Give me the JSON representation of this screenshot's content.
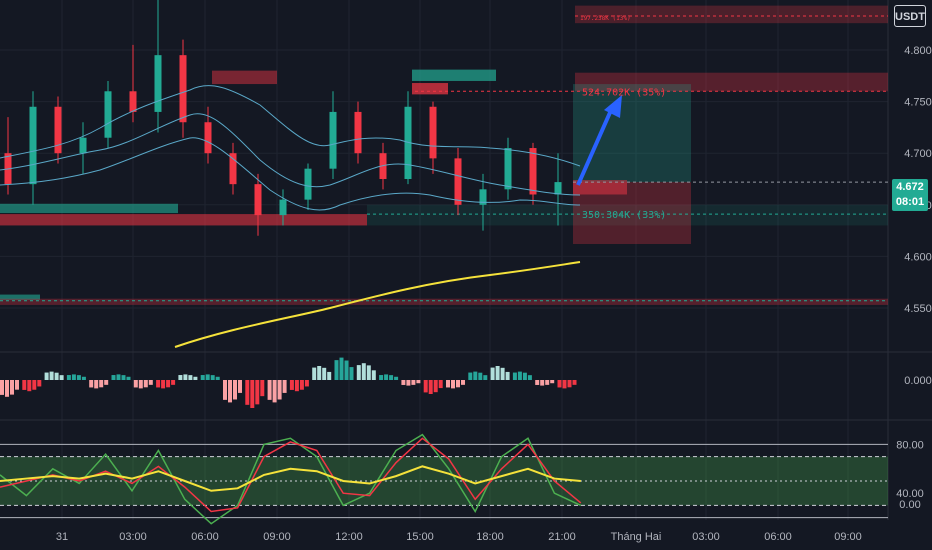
{
  "currency_button": "USDT",
  "last_price": "4.672",
  "countdown": "08:01",
  "colors": {
    "background": "#141823",
    "grid": "#1f2430",
    "up": "#22ab94",
    "down": "#f23645",
    "ema": "#f5e23b",
    "bands": "#5aa8c8",
    "arrow": "#2962ff"
  },
  "chart_data": [
    {
      "type": "candlestick",
      "panel": "price",
      "ylim": [
        4.53,
        4.84
      ],
      "y_ticks": [
        "4.800",
        "4.750",
        "4.700",
        "4.650",
        "4.600",
        "4.550"
      ],
      "x_ticks": [
        "31",
        "03:00",
        "06:00",
        "09:00",
        "12:00",
        "15:00",
        "18:00",
        "21:00",
        "Tháng Hai",
        "03:00",
        "06:00",
        "09:00"
      ],
      "candles_approx": [
        {
          "t": "00:00",
          "o": 4.7,
          "h": 4.735,
          "l": 4.66,
          "c": 4.67
        },
        {
          "t": "01:00",
          "o": 4.67,
          "h": 4.76,
          "l": 4.65,
          "c": 4.745
        },
        {
          "t": "02:00",
          "o": 4.745,
          "h": 4.755,
          "l": 4.69,
          "c": 4.7
        },
        {
          "t": "03:00",
          "o": 4.7,
          "h": 4.73,
          "l": 4.68,
          "c": 4.715
        },
        {
          "t": "04:00",
          "o": 4.715,
          "h": 4.77,
          "l": 4.705,
          "c": 4.76
        },
        {
          "t": "05:00",
          "o": 4.76,
          "h": 4.805,
          "l": 4.73,
          "c": 4.74
        },
        {
          "t": "06:00",
          "o": 4.74,
          "h": 4.85,
          "l": 4.72,
          "c": 4.795
        },
        {
          "t": "06:30",
          "o": 4.795,
          "h": 4.81,
          "l": 4.715,
          "c": 4.73
        },
        {
          "t": "07:00",
          "o": 4.73,
          "h": 4.745,
          "l": 4.69,
          "c": 4.7
        },
        {
          "t": "08:00",
          "o": 4.7,
          "h": 4.71,
          "l": 4.66,
          "c": 4.67
        },
        {
          "t": "09:00",
          "o": 4.67,
          "h": 4.68,
          "l": 4.62,
          "c": 4.64
        },
        {
          "t": "10:00",
          "o": 4.64,
          "h": 4.665,
          "l": 4.63,
          "c": 4.655
        },
        {
          "t": "11:00",
          "o": 4.655,
          "h": 4.69,
          "l": 4.645,
          "c": 4.685
        },
        {
          "t": "12:00",
          "o": 4.685,
          "h": 4.76,
          "l": 4.675,
          "c": 4.74
        },
        {
          "t": "13:00",
          "o": 4.74,
          "h": 4.75,
          "l": 4.69,
          "c": 4.7
        },
        {
          "t": "14:00",
          "o": 4.7,
          "h": 4.71,
          "l": 4.665,
          "c": 4.675
        },
        {
          "t": "15:00",
          "o": 4.675,
          "h": 4.76,
          "l": 4.67,
          "c": 4.745
        },
        {
          "t": "16:00",
          "o": 4.745,
          "h": 4.75,
          "l": 4.68,
          "c": 4.695
        },
        {
          "t": "17:00",
          "o": 4.695,
          "h": 4.705,
          "l": 4.64,
          "c": 4.65
        },
        {
          "t": "18:00",
          "o": 4.65,
          "h": 4.68,
          "l": 4.625,
          "c": 4.665
        },
        {
          "t": "19:00",
          "o": 4.665,
          "h": 4.715,
          "l": 4.655,
          "c": 4.705
        },
        {
          "t": "20:00",
          "o": 4.705,
          "h": 4.71,
          "l": 4.65,
          "c": 4.66
        },
        {
          "t": "21:00",
          "o": 4.66,
          "h": 4.7,
          "l": 4.63,
          "c": 4.672
        }
      ],
      "ema_line": [
        {
          "t": "05:00",
          "v": 4.568
        },
        {
          "t": "09:00",
          "v": 4.578
        },
        {
          "t": "12:00",
          "v": 4.588
        },
        {
          "t": "15:00",
          "v": 4.598
        },
        {
          "t": "18:00",
          "v": 4.603
        },
        {
          "t": "21:00",
          "v": 4.607
        }
      ],
      "annotations": [
        {
          "text": "524.702K (35%)",
          "y": 4.76
        },
        {
          "text": "350.304K (33%)",
          "y": 4.641
        },
        {
          "text": "197.238K (13%)",
          "y": 4.833
        }
      ]
    },
    {
      "type": "bar",
      "panel": "histogram",
      "y_ticks": [
        "0.000"
      ],
      "values": [
        -0.6,
        -0.4,
        0.3,
        0.2,
        -0.3,
        0.2,
        -0.3,
        -0.3,
        0.2,
        0.2,
        -0.8,
        -1.0,
        -0.8,
        -0.4,
        0.5,
        0.8,
        0.6,
        0.2,
        -0.2,
        -0.5,
        -0.3,
        0.3,
        0.5,
        0.3,
        -0.2,
        -0.3
      ]
    },
    {
      "type": "line",
      "panel": "oscillator",
      "ylim": [
        0,
        100
      ],
      "y_ticks": [
        "80.00",
        "40.00",
        "0.00"
      ],
      "series": [
        {
          "values": [
            55,
            38,
            60,
            48,
            72,
            42,
            75,
            35,
            15,
            30,
            80,
            85,
            70,
            30,
            40,
            75,
            88,
            60,
            25,
            70,
            85,
            40,
            30
          ]
        },
        {
          "values": [
            45,
            50,
            55,
            50,
            58,
            48,
            62,
            45,
            25,
            28,
            70,
            82,
            75,
            40,
            38,
            65,
            85,
            68,
            35,
            60,
            80,
            50,
            32
          ]
        },
        {
          "values": [
            50,
            52,
            54,
            52,
            56,
            52,
            58,
            50,
            42,
            44,
            55,
            60,
            58,
            50,
            48,
            54,
            62,
            56,
            48,
            54,
            60,
            52,
            50
          ]
        }
      ]
    }
  ]
}
